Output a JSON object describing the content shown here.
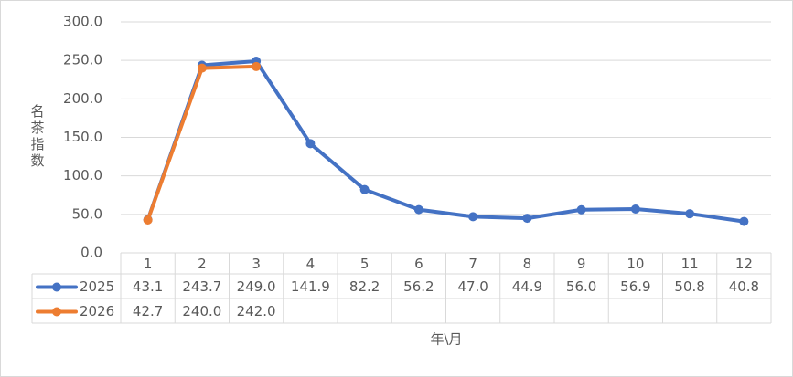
{
  "chart_data": {
    "type": "line",
    "y_label": "名茶指数",
    "x_label": "年\\月",
    "categories": [
      "1",
      "2",
      "3",
      "4",
      "5",
      "6",
      "7",
      "8",
      "9",
      "10",
      "11",
      "12"
    ],
    "series": [
      {
        "name": "2025",
        "color": "#4472c4",
        "values": [
          43.1,
          243.7,
          249.0,
          141.9,
          82.2,
          56.2,
          47.0,
          44.9,
          56.0,
          56.9,
          50.8,
          40.8
        ],
        "value_labels": [
          "43.1",
          "243.7",
          "249.0",
          "141.9",
          "82.2",
          "56.2",
          "47.0",
          "44.9",
          "56.0",
          "56.9",
          "50.8",
          "40.8"
        ]
      },
      {
        "name": "2026",
        "color": "#ed7d31",
        "values": [
          42.7,
          240.0,
          242.0,
          null,
          null,
          null,
          null,
          null,
          null,
          null,
          null,
          null
        ],
        "value_labels": [
          "42.7",
          "240.0",
          "242.0",
          null,
          null,
          null,
          null,
          null,
          null,
          null,
          null,
          null
        ]
      }
    ],
    "ylim": [
      0,
      300
    ],
    "yticks": [
      {
        "value": 0,
        "label": "0.0"
      },
      {
        "value": 50,
        "label": "50.0"
      },
      {
        "value": 100,
        "label": "100.0"
      },
      {
        "value": 150,
        "label": "150.0"
      },
      {
        "value": 200,
        "label": "200.0"
      },
      {
        "value": 250,
        "label": "250.0"
      },
      {
        "value": 300,
        "label": "300.0"
      }
    ],
    "grid": true
  }
}
